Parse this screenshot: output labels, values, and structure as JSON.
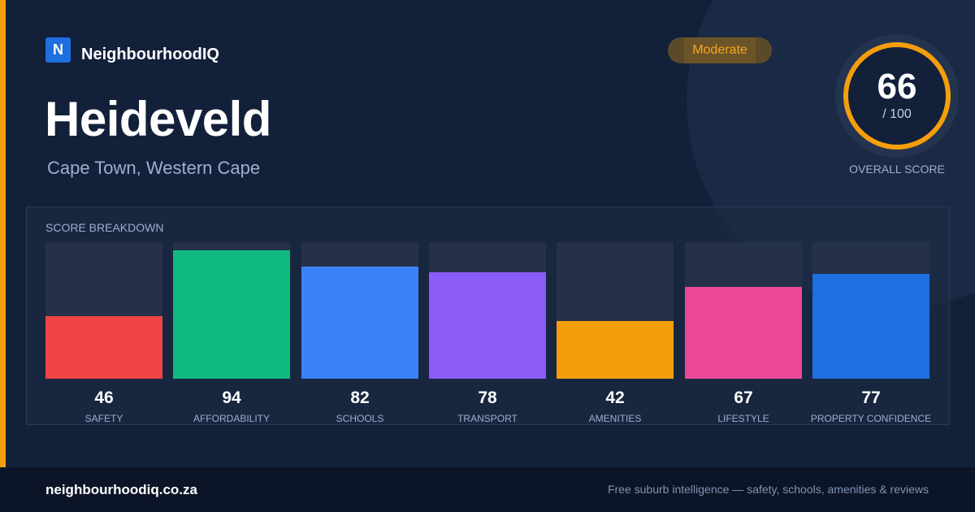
{
  "brand": {
    "logo_letter": "N",
    "name": "NeighbourhoodIQ"
  },
  "suburb": {
    "name": "Heideveld",
    "location": "Cape Town, Western Cape"
  },
  "rating": {
    "badge": "Moderate",
    "score": "66",
    "max": "/ 100",
    "label": "OVERALL SCORE"
  },
  "colors": {
    "accent": "#f59e0b",
    "brand": "#1e6fe0",
    "background": "#13203a"
  },
  "breakdown": {
    "title": "SCORE BREAKDOWN",
    "max_value": 100,
    "items": [
      {
        "label": "SAFETY",
        "value": 46,
        "color": "#ef4444"
      },
      {
        "label": "AFFORDABILITY",
        "value": 94,
        "color": "#10b981"
      },
      {
        "label": "SCHOOLS",
        "value": 82,
        "color": "#3b82f6"
      },
      {
        "label": "TRANSPORT",
        "value": 78,
        "color": "#8b5cf6"
      },
      {
        "label": "AMENITIES",
        "value": 42,
        "color": "#f59e0b"
      },
      {
        "label": "LIFESTYLE",
        "value": 67,
        "color": "#ec4899"
      },
      {
        "label": "PROPERTY CONFIDENCE",
        "value": 77,
        "color": "#1e6fe0"
      }
    ]
  },
  "chart_data": {
    "type": "bar",
    "title": "SCORE BREAKDOWN",
    "categories": [
      "SAFETY",
      "AFFORDABILITY",
      "SCHOOLS",
      "TRANSPORT",
      "AMENITIES",
      "LIFESTYLE",
      "PROPERTY CONFIDENCE"
    ],
    "values": [
      46,
      94,
      82,
      78,
      42,
      67,
      77
    ],
    "ylim": [
      0,
      100
    ],
    "grid": false
  },
  "footer": {
    "url": "neighbourhoodiq.co.za",
    "tagline": "Free suburb intelligence — safety, schools, amenities & reviews"
  }
}
